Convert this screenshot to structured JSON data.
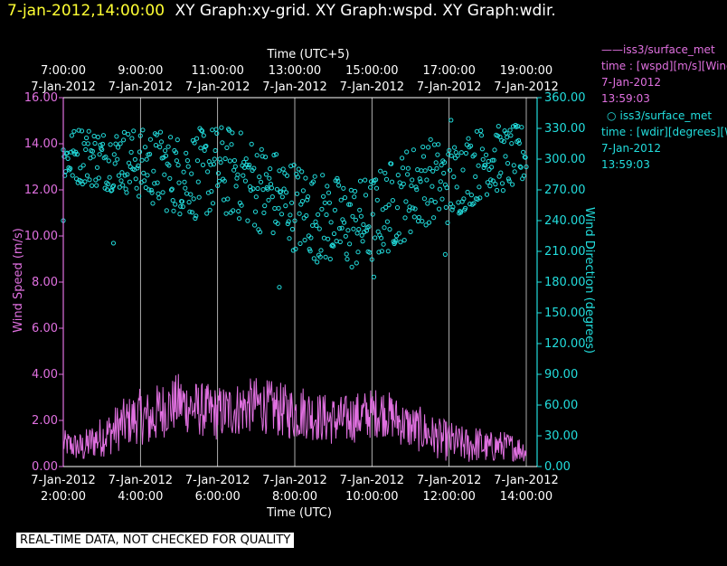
{
  "header": {
    "timestamp": "7-jan-2012,14:00:00",
    "titles": "XY Graph:xy-grid.  XY Graph:wspd.  XY Graph:wdir."
  },
  "colors": {
    "wspd": "#e070e0",
    "wdir": "#22dddd",
    "grid": "#ffffff",
    "header_ts": "#ffff33"
  },
  "legend": {
    "wspd": {
      "name": "iss3/surface_met",
      "line2": "time : [wspd][m/s][Wind",
      "date": "7-Jan-2012",
      "time": "13:59:03"
    },
    "wdir": {
      "name": "iss3/surface_met",
      "line2": "time : [wdir][degrees][W",
      "date": "7-Jan-2012",
      "time": "13:59:03"
    }
  },
  "footer": "REAL-TIME DATA, NOT CHECKED FOR QUALITY",
  "chart_data": {
    "type": "scatter",
    "top_axis": {
      "title": "Time (UTC+5)",
      "ticks": [
        {
          "time": "7:00:00",
          "date": "7-Jan-2012"
        },
        {
          "time": "9:00:00",
          "date": "7-Jan-2012"
        },
        {
          "time": "11:00:00",
          "date": "7-Jan-2012"
        },
        {
          "time": "13:00:00",
          "date": "7-Jan-2012"
        },
        {
          "time": "15:00:00",
          "date": "7-Jan-2012"
        },
        {
          "time": "17:00:00",
          "date": "7-Jan-2012"
        },
        {
          "time": "19:00:00",
          "date": "7-Jan-2012"
        }
      ]
    },
    "bottom_axis": {
      "title": "Time (UTC)",
      "ticks": [
        {
          "date": "7-Jan-2012",
          "time": "2:00:00"
        },
        {
          "date": "7-Jan-2012",
          "time": "4:00:00"
        },
        {
          "date": "7-Jan-2012",
          "time": "6:00:00"
        },
        {
          "date": "7-Jan-2012",
          "time": "8:00:00"
        },
        {
          "date": "7-Jan-2012",
          "time": "10:00:00"
        },
        {
          "date": "7-Jan-2012",
          "time": "12:00:00"
        },
        {
          "date": "7-Jan-2012",
          "time": "14:00:00"
        }
      ],
      "xlim_hours_utc": [
        2,
        14
      ]
    },
    "left_axis": {
      "title": "Wind Speed (m/s)",
      "ylim": [
        0,
        16
      ],
      "tick_values": [
        0,
        2,
        4,
        6,
        8,
        10,
        12,
        14,
        16
      ],
      "tick_labels": [
        "0.00",
        "2.00",
        "4.00",
        "6.00",
        "8.00",
        "10.00",
        "12.00",
        "14.00",
        "16.00"
      ]
    },
    "right_axis": {
      "title": "Wind Direction (degrees)",
      "ylim": [
        0,
        360
      ],
      "tick_values": [
        0,
        30,
        60,
        90,
        120,
        150,
        180,
        210,
        240,
        270,
        300,
        330,
        360
      ],
      "tick_labels": [
        "0.00",
        "30.00",
        "60.00",
        "90.00",
        "120.00",
        "150.00",
        "180.00",
        "210.00",
        "240.00",
        "270.00",
        "300.00",
        "330.00",
        "360.00"
      ]
    },
    "series": [
      {
        "name": "wspd",
        "kind": "line",
        "axis": "left",
        "color": "#e070e0",
        "x_hours_utc": [
          2.0,
          2.25,
          2.5,
          2.75,
          3.0,
          3.25,
          3.5,
          3.75,
          4.0,
          4.25,
          4.5,
          4.75,
          5.0,
          5.25,
          5.5,
          5.75,
          6.0,
          6.25,
          6.5,
          6.75,
          7.0,
          7.25,
          7.5,
          7.75,
          8.0,
          8.25,
          8.5,
          8.75,
          9.0,
          9.25,
          9.5,
          9.75,
          10.0,
          10.25,
          10.5,
          10.75,
          11.0,
          11.25,
          11.5,
          11.75,
          12.0,
          12.25,
          12.5,
          12.75,
          13.0,
          13.25,
          13.5,
          13.75,
          14.0
        ],
        "values": [
          1.0,
          0.9,
          0.8,
          1.1,
          1.3,
          1.5,
          1.8,
          2.0,
          2.2,
          2.0,
          2.4,
          2.6,
          2.8,
          2.6,
          2.5,
          2.4,
          2.3,
          2.4,
          2.5,
          2.6,
          2.7,
          2.6,
          2.5,
          2.4,
          2.3,
          2.4,
          2.2,
          2.1,
          2.0,
          2.0,
          2.1,
          2.2,
          2.3,
          2.4,
          2.2,
          1.9,
          1.7,
          1.6,
          1.4,
          1.2,
          1.1,
          1.0,
          0.9,
          1.0,
          0.8,
          0.9,
          0.9,
          0.8,
          0.7
        ],
        "spread_envelope": [
          0.6,
          0.6,
          0.7,
          0.8,
          0.9,
          1.0,
          1.1,
          1.1,
          1.2,
          1.3,
          1.3,
          1.2,
          1.3,
          1.2,
          1.2,
          1.2,
          1.2,
          1.2,
          1.2,
          1.2,
          1.2,
          1.2,
          1.2,
          1.2,
          1.2,
          1.2,
          1.1,
          1.1,
          1.1,
          1.1,
          1.1,
          1.1,
          1.1,
          1.1,
          1.0,
          1.0,
          1.0,
          1.0,
          0.9,
          0.9,
          0.9,
          0.8,
          0.8,
          0.8,
          0.7,
          0.7,
          0.6,
          0.6,
          0.5
        ]
      },
      {
        "name": "wdir",
        "kind": "scatter",
        "axis": "right",
        "color": "#22dddd",
        "x_hours_utc": [
          2.0,
          2.5,
          3.0,
          3.5,
          4.0,
          4.5,
          5.0,
          5.5,
          6.0,
          6.5,
          7.0,
          7.5,
          8.0,
          8.5,
          9.0,
          9.5,
          10.0,
          10.5,
          11.0,
          11.5,
          12.0,
          12.5,
          13.0,
          13.5,
          14.0
        ],
        "values": [
          300,
          305,
          300,
          300,
          295,
          290,
          285,
          285,
          290,
          285,
          275,
          265,
          255,
          245,
          240,
          235,
          240,
          255,
          270,
          280,
          275,
          290,
          300,
          300,
          305
        ],
        "spread_envelope": [
          25,
          30,
          30,
          32,
          35,
          40,
          40,
          45,
          45,
          45,
          45,
          45,
          45,
          45,
          45,
          45,
          45,
          45,
          45,
          42,
          40,
          38,
          35,
          32,
          30
        ],
        "outliers": [
          {
            "x_hours_utc": 2.0,
            "value": 240
          },
          {
            "x_hours_utc": 3.3,
            "value": 218
          },
          {
            "x_hours_utc": 7.6,
            "value": 175
          },
          {
            "x_hours_utc": 10.05,
            "value": 185
          },
          {
            "x_hours_utc": 11.9,
            "value": 207
          },
          {
            "x_hours_utc": 12.05,
            "value": 338
          }
        ]
      }
    ]
  }
}
